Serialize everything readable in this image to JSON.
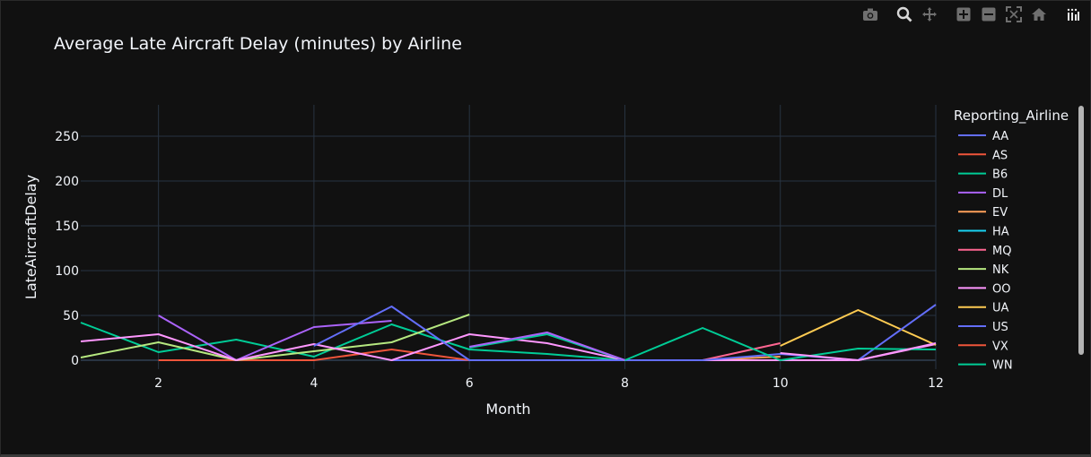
{
  "chart_data": {
    "type": "line",
    "title": "Average Late Aircraft Delay (minutes) by Airline",
    "xlabel": "Month",
    "ylabel": "LateAircraftDelay",
    "xlim": [
      1,
      12
    ],
    "ylim": [
      -10,
      285
    ],
    "xticks": [
      2,
      4,
      6,
      8,
      10,
      12
    ],
    "yticks": [
      0,
      50,
      100,
      150,
      200,
      250
    ],
    "grid": true,
    "legend": {
      "title": "Reporting_Airline",
      "placement": "right"
    },
    "series": [
      {
        "name": "AA",
        "color": "#636efa",
        "x": [
          5,
          6,
          7
        ],
        "y": [
          0,
          0,
          0
        ]
      },
      {
        "name": "AS",
        "color": "#EF553B",
        "x": [
          2,
          3,
          4,
          5,
          6
        ],
        "y": [
          0,
          0,
          0,
          12,
          0
        ]
      },
      {
        "name": "B6",
        "color": "#00cc96",
        "x": [
          1,
          2,
          3,
          4,
          5,
          6,
          7,
          8
        ],
        "y": [
          42,
          9,
          23,
          4,
          40,
          12,
          7,
          0
        ]
      },
      {
        "name": "DL",
        "color": "#ab63fa",
        "x": [
          2,
          3,
          4,
          5
        ],
        "y": [
          50,
          0,
          37,
          44
        ]
      },
      {
        "name": "EV",
        "color": "#FFA15A",
        "x": [
          9,
          10
        ],
        "y": [
          0,
          4
        ]
      },
      {
        "name": "HA",
        "color": "#19d3f3",
        "x": [],
        "y": []
      },
      {
        "name": "MQ",
        "color": "#FF6692",
        "x": [
          9,
          10
        ],
        "y": [
          0,
          19
        ]
      },
      {
        "name": "NK",
        "color": "#B6E880",
        "x": [
          1,
          2,
          3,
          4,
          5,
          6
        ],
        "y": [
          3,
          20,
          0,
          10,
          20,
          51
        ]
      },
      {
        "name": "OO",
        "color": "#FF97FF",
        "x": [
          1,
          2,
          3,
          4,
          5,
          6,
          7,
          8,
          9,
          10,
          11,
          12
        ],
        "y": [
          21,
          29,
          0,
          18,
          0,
          29,
          19,
          0,
          0,
          0,
          0,
          18
        ]
      },
      {
        "name": "UA",
        "color": "#FECB52",
        "x": [
          10,
          11,
          12
        ],
        "y": [
          16,
          56,
          17
        ]
      },
      {
        "name": "US",
        "color": "#636efa",
        "x": [
          4,
          5,
          6,
          7,
          8,
          9,
          10,
          11,
          12
        ],
        "y": [
          16,
          60,
          0,
          0,
          0,
          0,
          7,
          0,
          62
        ]
      },
      {
        "name": "VX",
        "color": "#EF553B",
        "x": [],
        "y": []
      },
      {
        "name": "WN",
        "color": "#00cc96",
        "x": [
          6,
          7,
          8,
          9,
          10,
          11,
          12
        ],
        "y": [
          14,
          29,
          0,
          36,
          0,
          13,
          12
        ]
      }
    ]
  },
  "extra_series": [
    {
      "name": "DL",
      "color": "#ab63fa",
      "x": [
        6,
        7,
        8
      ],
      "y": [
        15,
        31,
        0
      ]
    },
    {
      "name": "OO",
      "color": "#FF97FF",
      "x": [
        10,
        11,
        12
      ],
      "y": [
        8,
        0,
        19
      ]
    }
  ],
  "modebar": {
    "icons": [
      "camera-icon",
      "zoom-icon",
      "pan-icon",
      "zoom-in-icon",
      "zoom-out-icon",
      "autoscale-icon",
      "reset-axes-icon",
      "plotly-logo-icon"
    ]
  }
}
